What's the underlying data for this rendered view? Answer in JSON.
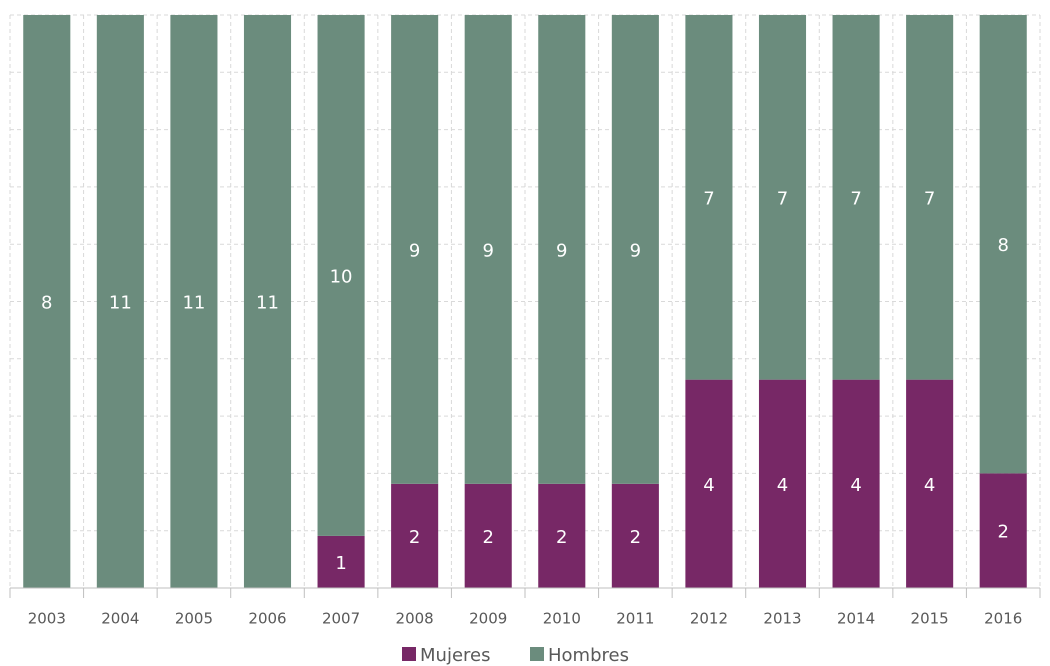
{
  "chart_data": {
    "type": "bar",
    "stacked": "percent",
    "categories": [
      "2003",
      "2004",
      "2005",
      "2006",
      "2007",
      "2008",
      "2009",
      "2010",
      "2011",
      "2012",
      "2013",
      "2014",
      "2015",
      "2016"
    ],
    "series": [
      {
        "name": "Mujeres",
        "color": "#772866",
        "values": [
          0,
          0,
          0,
          0,
          1,
          2,
          2,
          2,
          2,
          4,
          4,
          4,
          4,
          2
        ]
      },
      {
        "name": "Hombres",
        "color": "#6b8c7d",
        "values": [
          8,
          11,
          11,
          11,
          10,
          9,
          9,
          9,
          9,
          7,
          7,
          7,
          7,
          8
        ]
      }
    ],
    "percent_labels": [
      "0,00%",
      "0,00%",
      "0,00%",
      "0,00%",
      "9,09%",
      "18,18%",
      "18,18%",
      "18,18%",
      "18,18%",
      "36,36%",
      "36,36%",
      "36,36%",
      "36,36%",
      "20,00%"
    ],
    "ylim": [
      0,
      100
    ],
    "yticks": [
      0,
      10,
      20,
      30,
      40,
      50,
      60,
      70,
      80,
      90,
      100
    ],
    "grid": true,
    "legend": "bottom"
  }
}
